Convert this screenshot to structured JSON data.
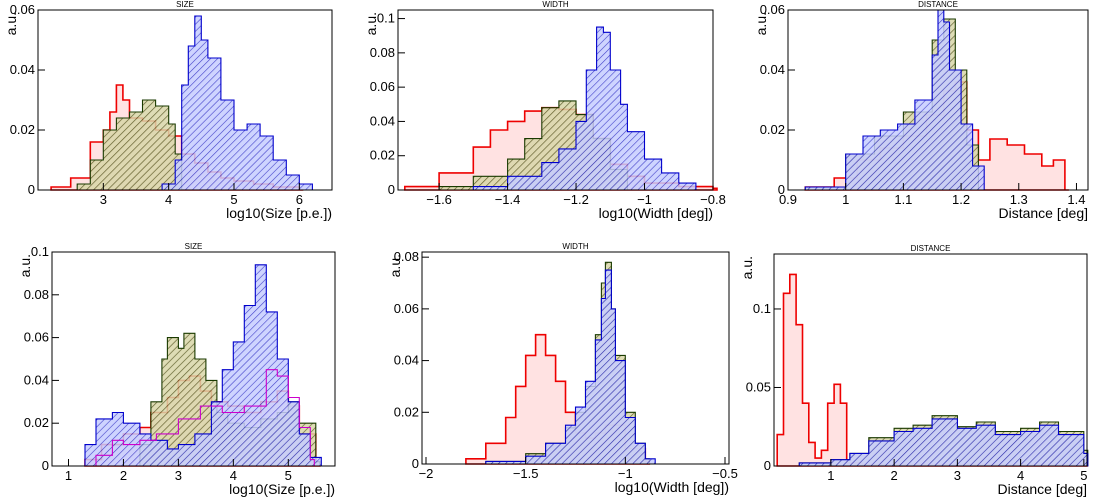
{
  "chart_data": [
    {
      "type": "histogram",
      "title": "SIZE",
      "xlabel": "log10(Size [p.e.])",
      "ylabel": "a.u.",
      "xlim": [
        2.0,
        6.5
      ],
      "ylim": [
        0,
        0.06
      ],
      "xticks": [
        "3",
        "4",
        "5",
        "6"
      ],
      "yticks": [
        "0",
        "0.02",
        "0.04",
        "0.06"
      ],
      "series": [
        {
          "color": "#ee0000",
          "fill": "#ffd6d6",
          "x": [
            2.2,
            2.5,
            2.8,
            3.0,
            3.1,
            3.2,
            3.3,
            3.4,
            3.6,
            3.8,
            4.0,
            4.2,
            4.4,
            4.6,
            4.8,
            5.0,
            5.3,
            5.6,
            6.0
          ],
          "values": [
            0.001,
            0.004,
            0.016,
            0.02,
            0.026,
            0.035,
            0.03,
            0.024,
            0.023,
            0.02,
            0.018,
            0.012,
            0.009,
            0.006,
            0.004,
            0.003,
            0.002,
            0.001,
            0.0
          ]
        },
        {
          "color": "#1a3a00",
          "fill": "#c8c896",
          "x": [
            2.6,
            2.8,
            3.0,
            3.2,
            3.4,
            3.6,
            3.8,
            4.0,
            4.1,
            4.2
          ],
          "values": [
            0.002,
            0.01,
            0.02,
            0.024,
            0.026,
            0.03,
            0.028,
            0.022,
            0.012,
            0.0
          ]
        },
        {
          "color": "#0000cc",
          "fill": "#b8c4ff",
          "x": [
            3.9,
            4.1,
            4.2,
            4.3,
            4.4,
            4.5,
            4.6,
            4.8,
            5.0,
            5.2,
            5.4,
            5.6,
            5.8,
            6.0,
            6.2
          ],
          "values": [
            0.002,
            0.01,
            0.035,
            0.048,
            0.058,
            0.05,
            0.044,
            0.03,
            0.02,
            0.022,
            0.018,
            0.01,
            0.005,
            0.002,
            0.0
          ]
        }
      ]
    },
    {
      "type": "histogram",
      "title": "WIDTH",
      "xlabel": "log10(Width [deg])",
      "ylabel": "a.u.",
      "xlim": [
        -1.72,
        -0.8
      ],
      "ylim": [
        0,
        0.105
      ],
      "xticks": [
        "-1.6",
        "-1.4",
        "-1.2",
        "-1",
        "-0.8"
      ],
      "yticks": [
        "0",
        "0.02",
        "0.04",
        "0.06",
        "0.08",
        "0.1"
      ],
      "series": [
        {
          "color": "#ee0000",
          "fill": "#ffd6d6",
          "x": [
            -1.7,
            -1.6,
            -1.5,
            -1.45,
            -1.4,
            -1.35,
            -1.3,
            -1.25,
            -1.2,
            -1.15,
            -1.1,
            -1.05,
            -1.0,
            -0.9,
            -0.8
          ],
          "values": [
            0.002,
            0.01,
            0.025,
            0.035,
            0.04,
            0.046,
            0.048,
            0.047,
            0.044,
            0.03,
            0.015,
            0.008,
            0.004,
            0.002,
            0.001
          ]
        },
        {
          "color": "#1a3a00",
          "fill": "#c8c896",
          "x": [
            -1.6,
            -1.5,
            -1.4,
            -1.35,
            -1.3,
            -1.25,
            -1.2,
            -1.15,
            -1.1,
            -1.05
          ],
          "values": [
            0.002,
            0.008,
            0.018,
            0.03,
            0.048,
            0.052,
            0.044,
            0.03,
            0.012,
            0.0
          ]
        },
        {
          "color": "#0000cc",
          "fill": "#b8c4ff",
          "x": [
            -1.5,
            -1.4,
            -1.3,
            -1.25,
            -1.2,
            -1.17,
            -1.14,
            -1.12,
            -1.1,
            -1.07,
            -1.05,
            -1.0,
            -0.95,
            -0.9,
            -0.85
          ],
          "values": [
            0.002,
            0.008,
            0.016,
            0.024,
            0.04,
            0.07,
            0.095,
            0.092,
            0.07,
            0.05,
            0.034,
            0.018,
            0.01,
            0.004,
            0.0
          ]
        }
      ]
    },
    {
      "type": "histogram",
      "title": "DISTANCE",
      "xlabel": "Distance [deg]",
      "ylabel": "a.u.",
      "xlim": [
        0.9,
        1.42
      ],
      "ylim": [
        0,
        0.06
      ],
      "xticks": [
        "0.9",
        "1",
        "1.1",
        "1.2",
        "1.3",
        "1.4"
      ],
      "yticks": [
        "0",
        "0.02",
        "0.04",
        "0.06"
      ],
      "series": [
        {
          "color": "#ee0000",
          "fill": "#ffd6d6",
          "x": [
            0.93,
            0.98,
            1.02,
            1.06,
            1.1,
            1.14,
            1.17,
            1.19,
            1.21,
            1.23,
            1.25,
            1.28,
            1.31,
            1.34,
            1.36,
            1.38
          ],
          "values": [
            0.001,
            0.004,
            0.01,
            0.014,
            0.018,
            0.025,
            0.033,
            0.036,
            0.02,
            0.01,
            0.017,
            0.015,
            0.012,
            0.008,
            0.01,
            0.0
          ]
        },
        {
          "color": "#1a3a00",
          "fill": "#c8c896",
          "x": [
            0.93,
            1.0,
            1.05,
            1.1,
            1.15,
            1.17,
            1.19,
            1.21,
            1.23
          ],
          "values": [
            0.001,
            0.012,
            0.018,
            0.026,
            0.05,
            0.057,
            0.04,
            0.015,
            0.0
          ]
        },
        {
          "color": "#0000cc",
          "fill": "#b8c4ff",
          "x": [
            0.93,
            1.0,
            1.03,
            1.06,
            1.09,
            1.12,
            1.15,
            1.16,
            1.17,
            1.18,
            1.2,
            1.22,
            1.24
          ],
          "values": [
            0.001,
            0.012,
            0.018,
            0.02,
            0.022,
            0.03,
            0.045,
            0.06,
            0.056,
            0.04,
            0.022,
            0.008,
            0.0
          ]
        }
      ]
    },
    {
      "type": "histogram",
      "title": "SIZE",
      "xlabel": "log10(Size [p.e.])",
      "ylabel": "a.u.",
      "xlim": [
        0.7,
        5.85
      ],
      "ylim": [
        0,
        0.1
      ],
      "xticks": [
        "1",
        "2",
        "3",
        "4",
        "5"
      ],
      "yticks": [
        "0",
        "0.02",
        "0.04",
        "0.06",
        "0.08",
        "0.1"
      ],
      "series": [
        {
          "color": "#ee0000",
          "fill": "#ffd6d6",
          "x": [
            1.3,
            1.6,
            2.0,
            2.3,
            2.5,
            2.8,
            3.0,
            3.2,
            3.4,
            3.6,
            3.9,
            4.2,
            4.5,
            4.8,
            5.0,
            5.2,
            5.5
          ],
          "values": [
            0.003,
            0.01,
            0.015,
            0.018,
            0.025,
            0.032,
            0.04,
            0.042,
            0.035,
            0.03,
            0.028,
            0.025,
            0.03,
            0.035,
            0.028,
            0.015,
            0.002
          ]
        },
        {
          "color": "#1a3a00",
          "fill": "#c8c896",
          "x": [
            2.3,
            2.5,
            2.7,
            2.8,
            3.0,
            3.1,
            3.3,
            3.5,
            3.7,
            3.9,
            4.2,
            4.5,
            4.8,
            5.0,
            5.2,
            5.5
          ],
          "values": [
            0.01,
            0.03,
            0.05,
            0.06,
            0.055,
            0.062,
            0.05,
            0.04,
            0.025,
            0.02,
            0.018,
            0.022,
            0.025,
            0.03,
            0.02,
            0.002
          ]
        },
        {
          "color": "#0000cc",
          "fill": "#b8c4ff",
          "x": [
            1.3,
            1.5,
            1.8,
            2.0,
            2.3,
            2.5,
            2.8,
            3.0,
            3.3,
            3.6,
            3.8,
            4.0,
            4.2,
            4.4,
            4.6,
            4.8,
            5.0,
            5.2,
            5.4,
            5.6
          ],
          "values": [
            0.01,
            0.022,
            0.025,
            0.02,
            0.015,
            0.012,
            0.008,
            0.01,
            0.015,
            0.03,
            0.045,
            0.058,
            0.075,
            0.094,
            0.072,
            0.05,
            0.03,
            0.015,
            0.004,
            0.0
          ]
        },
        {
          "color": "#cc00cc",
          "fill": "none",
          "x": [
            1.5,
            1.8,
            2.0,
            2.3,
            2.6,
            3.0,
            3.4,
            3.8,
            4.2,
            4.6,
            4.8,
            5.0,
            5.2,
            5.4
          ],
          "values": [
            0.005,
            0.012,
            0.01,
            0.012,
            0.015,
            0.022,
            0.028,
            0.025,
            0.028,
            0.045,
            0.042,
            0.032,
            0.018,
            0.003
          ]
        }
      ]
    },
    {
      "type": "histogram",
      "title": "WIDTH",
      "xlabel": "log10(Width [deg])",
      "ylabel": "a.u.",
      "xlim": [
        -2.02,
        -0.48
      ],
      "ylim": [
        0,
        0.082
      ],
      "xticks": [
        "-2",
        "-1.5",
        "-1",
        "-0.5"
      ],
      "yticks": [
        "0",
        "0.02",
        "0.04",
        "0.06",
        "0.08"
      ],
      "series": [
        {
          "color": "#ee0000",
          "fill": "#ffd6d6",
          "x": [
            -1.8,
            -1.7,
            -1.6,
            -1.55,
            -1.5,
            -1.45,
            -1.4,
            -1.35,
            -1.3,
            -1.25,
            -1.2,
            -1.15,
            -1.1,
            -1.0,
            -0.9
          ],
          "values": [
            0.002,
            0.008,
            0.018,
            0.03,
            0.042,
            0.05,
            0.042,
            0.032,
            0.02,
            0.012,
            0.01,
            0.012,
            0.015,
            0.006,
            0.001
          ]
        },
        {
          "color": "#1a3a00",
          "fill": "#c8c896",
          "x": [
            -1.7,
            -1.5,
            -1.4,
            -1.3,
            -1.25,
            -1.2,
            -1.15,
            -1.12,
            -1.1,
            -1.07,
            -1.05,
            -1.0,
            -0.95,
            -0.9
          ],
          "values": [
            0.001,
            0.004,
            0.008,
            0.014,
            0.02,
            0.03,
            0.05,
            0.07,
            0.078,
            0.06,
            0.042,
            0.02,
            0.008,
            0.002
          ]
        },
        {
          "color": "#0000cc",
          "fill": "#b8c4ff",
          "x": [
            -1.7,
            -1.5,
            -1.4,
            -1.3,
            -1.25,
            -1.2,
            -1.15,
            -1.12,
            -1.1,
            -1.07,
            -1.05,
            -1.0,
            -0.95,
            -0.9,
            -0.85
          ],
          "values": [
            0.001,
            0.003,
            0.008,
            0.015,
            0.022,
            0.032,
            0.048,
            0.064,
            0.075,
            0.06,
            0.04,
            0.018,
            0.008,
            0.002,
            0.0
          ]
        }
      ]
    },
    {
      "type": "histogram",
      "title": "DISTANCE",
      "xlabel": "Distance [deg]",
      "ylabel": "a.u.",
      "xlim": [
        0.1,
        5.05
      ],
      "ylim": [
        0,
        0.135
      ],
      "xticks": [
        "1",
        "2",
        "3",
        "4",
        "5"
      ],
      "yticks": [
        "0",
        "0.05",
        "0.1"
      ],
      "series": [
        {
          "color": "#ee0000",
          "fill": "#ffd6d6",
          "x": [
            0.15,
            0.25,
            0.35,
            0.45,
            0.55,
            0.65,
            0.75,
            0.85,
            0.95,
            1.05,
            1.15,
            1.25,
            1.5,
            2.0,
            3.0,
            4.0,
            5.0
          ],
          "values": [
            0.02,
            0.11,
            0.122,
            0.09,
            0.04,
            0.015,
            0.005,
            0.01,
            0.04,
            0.052,
            0.04,
            0.002,
            0.001,
            0.001,
            0.001,
            0.001,
            0.0
          ]
        },
        {
          "color": "#1a3a00",
          "fill": "#c8c896",
          "x": [
            0.5,
            1.0,
            1.3,
            1.6,
            2.0,
            2.3,
            2.6,
            3.0,
            3.3,
            3.6,
            4.0,
            4.3,
            4.6,
            5.0
          ],
          "values": [
            0.002,
            0.004,
            0.008,
            0.018,
            0.024,
            0.026,
            0.032,
            0.025,
            0.028,
            0.022,
            0.024,
            0.028,
            0.022,
            0.01
          ]
        },
        {
          "color": "#0000cc",
          "fill": "#b8c4ff",
          "x": [
            0.5,
            1.0,
            1.3,
            1.6,
            2.0,
            2.3,
            2.6,
            3.0,
            3.3,
            3.6,
            4.0,
            4.3,
            4.6,
            5.0
          ],
          "values": [
            0.002,
            0.004,
            0.008,
            0.016,
            0.022,
            0.024,
            0.03,
            0.024,
            0.026,
            0.02,
            0.022,
            0.026,
            0.02,
            0.008
          ]
        }
      ]
    }
  ]
}
